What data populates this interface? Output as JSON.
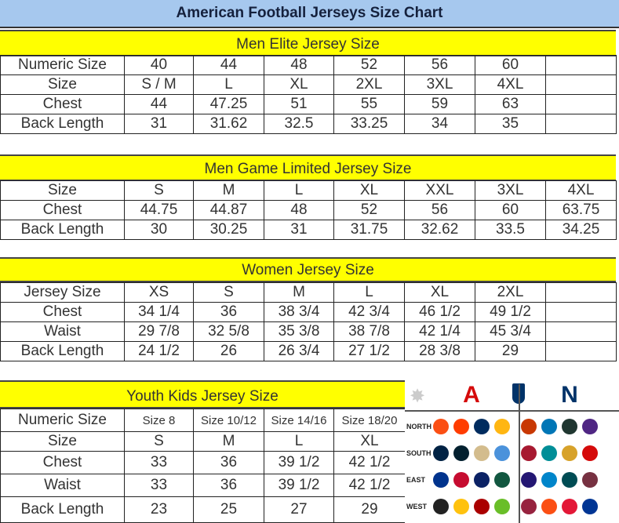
{
  "title": "American Football Jerseys Size Chart",
  "sections": [
    {
      "heading": "Men Elite Jersey Size",
      "rows": [
        [
          "Numeric Size",
          "40",
          "44",
          "48",
          "52",
          "56",
          "60",
          ""
        ],
        [
          "Size",
          "S / M",
          "L",
          "XL",
          "2XL",
          "3XL",
          "4XL",
          ""
        ],
        [
          "Chest",
          "44",
          "47.25",
          "51",
          "55",
          "59",
          "63",
          ""
        ],
        [
          "Back Length",
          "31",
          "31.62",
          "32.5",
          "33.25",
          "34",
          "35",
          ""
        ]
      ]
    },
    {
      "heading": "Men Game Limited Jersey Size",
      "rows": [
        [
          "Size",
          "S",
          "M",
          "L",
          "XL",
          "XXL",
          "3XL",
          "4XL"
        ],
        [
          "Chest",
          "44.75",
          "44.87",
          "48",
          "52",
          "56",
          "60",
          "63.75"
        ],
        [
          "Back Length",
          "30",
          "30.25",
          "31",
          "31.75",
          "32.62",
          "33.5",
          "34.25"
        ]
      ]
    },
    {
      "heading": "Women Jersey Size",
      "rows": [
        [
          "Jersey Size",
          "XS",
          "S",
          "M",
          "L",
          "XL",
          "2XL",
          ""
        ],
        [
          "Chest",
          "34 1/4",
          "36",
          "38 3/4",
          "42 3/4",
          "46 1/2",
          "49 1/2",
          ""
        ],
        [
          "Waist",
          "29 7/8",
          "32 5/8",
          "35 3/8",
          "38 7/8",
          "42 1/4",
          "45 3/4",
          ""
        ],
        [
          "Back Length",
          "24 1/2",
          "26",
          "26 3/4",
          "27 1/2",
          "28 3/8",
          "29",
          ""
        ]
      ]
    },
    {
      "heading": "Youth Kids Jersey Size",
      "rows": [
        [
          "Numeric Size",
          "Size 8",
          "Size 10/12",
          "Size 14/16",
          "Size 18/20"
        ],
        [
          "Size",
          "S",
          "M",
          "L",
          "XL"
        ],
        [
          "Chest",
          "33",
          "36",
          "39 1/2",
          "42 1/2"
        ],
        [
          "Waist",
          "33",
          "36",
          "39 1/2",
          "42 1/2"
        ],
        [
          "Back Length",
          "23",
          "25",
          "27",
          "29"
        ]
      ]
    }
  ],
  "logos": {
    "afc": "A",
    "nfc": "N",
    "divisions": [
      "NORTH",
      "SOUTH",
      "EAST",
      "WEST"
    ],
    "afc_colors": [
      [
        "#fb4f14",
        "#ff3c00",
        "#002c5f",
        "#ffb612"
      ],
      [
        "#002244",
        "#03202f",
        "#d3bc8d",
        "#4b92db"
      ],
      [
        "#00338d",
        "#c60c30",
        "#0b2265",
        "#125740"
      ],
      [
        "#222222",
        "#ffc20e",
        "#aa0000",
        "#69be28"
      ]
    ],
    "nfc_colors": [
      [
        "#c83803",
        "#0076b6",
        "#203731",
        "#4f2683"
      ],
      [
        "#a71930",
        "#008e97",
        "#d7a22a",
        "#d50a0a"
      ],
      [
        "#241773",
        "#0085ca",
        "#004c54",
        "#773141"
      ],
      [
        "#97233f",
        "#fb4f14",
        "#e31837",
        "#003594"
      ]
    ]
  }
}
